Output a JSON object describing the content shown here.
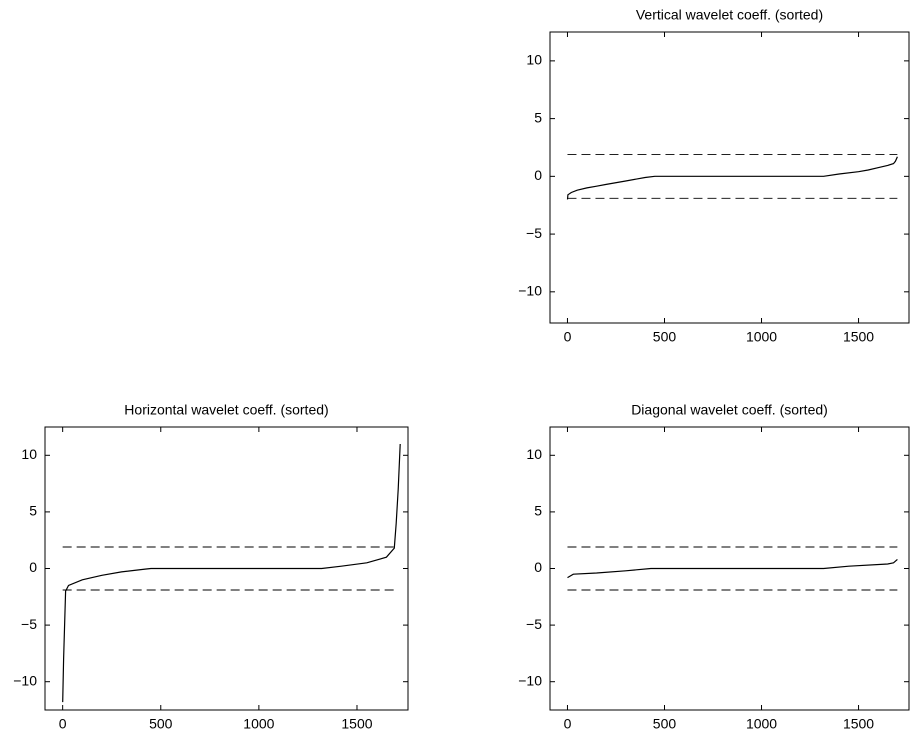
{
  "chart_data": [
    {
      "type": "line",
      "title": "Vertical wavelet coeff. (sorted)",
      "x": [
        0,
        2,
        20,
        50,
        100,
        150,
        200,
        300,
        400,
        450,
        1320,
        1400,
        1500,
        1550,
        1600,
        1650,
        1680,
        1690,
        1700
      ],
      "values": [
        -2,
        -1.6,
        -1.4,
        -1.2,
        -1.0,
        -0.85,
        -0.7,
        -0.4,
        -0.1,
        0,
        0,
        0.2,
        0.4,
        0.55,
        0.75,
        0.95,
        1.1,
        1.3,
        1.7
      ],
      "color": "#000000",
      "reference_lines": {
        "y": [
          1.9,
          -1.9
        ],
        "x_extent": [
          0,
          1700
        ],
        "dashed": true
      },
      "xlim": [
        -90,
        1760
      ],
      "ylim": [
        -12.7,
        12.5
      ],
      "xticks": [
        0,
        500,
        1000,
        1500
      ],
      "yticks": [
        {
          "value": -10,
          "label": "−10"
        },
        {
          "value": -5,
          "label": "−5"
        },
        0,
        5,
        10
      ]
    },
    {
      "type": "line",
      "title": "Horizontal wavelet coeff. (sorted)",
      "x": [
        0,
        5,
        15,
        30,
        100,
        200,
        300,
        420,
        450,
        1320,
        1420,
        1550,
        1650,
        1690,
        1700,
        1710,
        1720
      ],
      "values": [
        -11.8,
        -8,
        -2,
        -1.5,
        -1.0,
        -0.6,
        -0.3,
        -0.05,
        0,
        0,
        0.2,
        0.5,
        1.0,
        1.8,
        4,
        7,
        11
      ],
      "color": "#000000",
      "reference_lines": {
        "y": [
          1.9,
          -1.9
        ],
        "x_extent": [
          0,
          1700
        ],
        "dashed": true
      },
      "xlim": [
        -90,
        1760
      ],
      "ylim": [
        -12.5,
        12.5
      ],
      "xticks": [
        0,
        500,
        1000,
        1500
      ],
      "yticks": [
        {
          "value": -10,
          "label": "−10"
        },
        {
          "value": -5,
          "label": "−5"
        },
        0,
        5,
        10
      ]
    },
    {
      "type": "line",
      "title": "Diagonal wavelet coeff. (sorted)",
      "x": [
        0,
        30,
        150,
        300,
        430,
        1320,
        1450,
        1650,
        1680,
        1700
      ],
      "values": [
        -0.8,
        -0.5,
        -0.4,
        -0.2,
        0,
        0,
        0.2,
        0.4,
        0.5,
        0.8
      ],
      "color": "#000000",
      "reference_lines": {
        "y": [
          1.9,
          -1.9
        ],
        "x_extent": [
          0,
          1700
        ],
        "dashed": true
      },
      "xlim": [
        -90,
        1760
      ],
      "ylim": [
        -12.5,
        12.5
      ],
      "xticks": [
        0,
        500,
        1000,
        1500
      ],
      "yticks": [
        {
          "value": -10,
          "label": "−10"
        },
        {
          "value": -5,
          "label": "−5"
        },
        0,
        5,
        10
      ]
    }
  ]
}
